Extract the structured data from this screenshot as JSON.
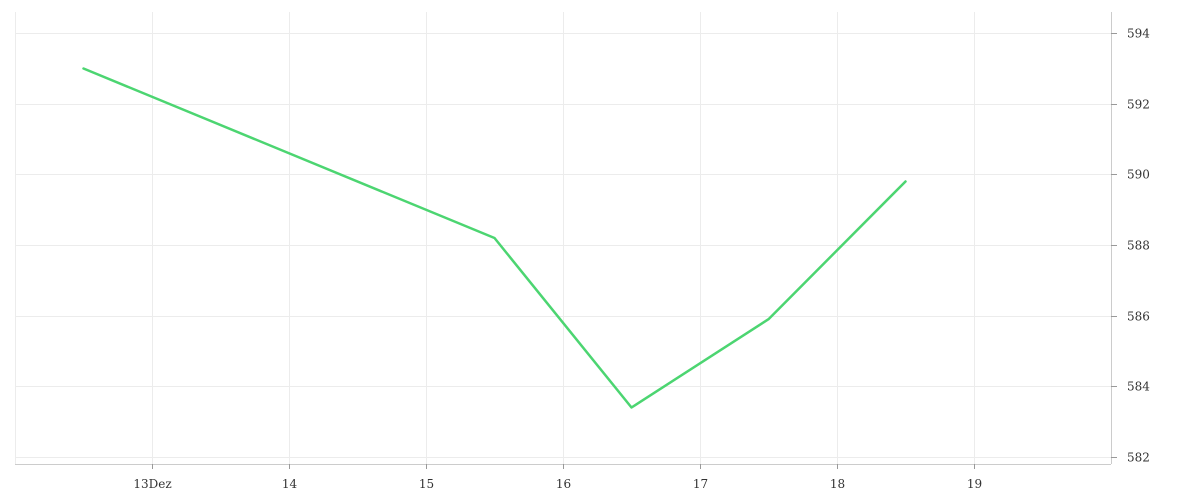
{
  "chart_data": {
    "type": "line",
    "title": "",
    "xlabel": "",
    "ylabel": "",
    "x_tick_labels": [
      "13Dez",
      "14",
      "15",
      "16",
      "17",
      "18",
      "19"
    ],
    "x_tick_values": [
      13,
      14,
      15,
      16,
      17,
      18,
      19
    ],
    "xlim": [
      12.0,
      20.0
    ],
    "ylim": [
      581.8,
      594.6
    ],
    "y_ticks": [
      582,
      584,
      586,
      588,
      590,
      592,
      594
    ],
    "y_axis_position": "right",
    "grid": true,
    "legend": "none",
    "series": [
      {
        "color": "#4cd571",
        "points": [
          {
            "x": 12.5,
            "y": 593.0
          },
          {
            "x": 15.5,
            "y": 588.2
          },
          {
            "x": 16.5,
            "y": 583.4
          },
          {
            "x": 17.5,
            "y": 585.9
          },
          {
            "x": 18.5,
            "y": 589.8
          }
        ]
      }
    ]
  }
}
